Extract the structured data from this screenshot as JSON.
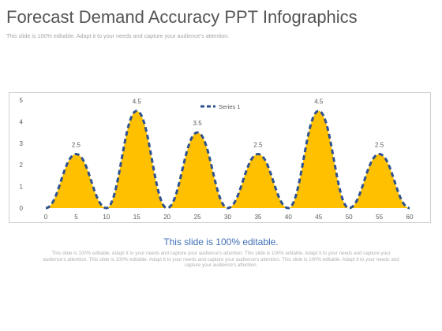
{
  "slide": {
    "title": "Forecast Demand Accuracy PPT Infographics",
    "subtitle": "This slide is 100% editable. Adapt it to your needs and capture your audience's attention.",
    "footer_heading": "This slide is 100% editable.",
    "footer_text": "This slide is 100% editable. Adapt it to your needs and capture your audience's attention. This slide is 100% editable. Adapt it to your needs and capture your audience's attention. This slide is 100% editable. Adapt it to your needs and capture your audience's attention. This slide is 100% editable. Adapt it to your needs and capture your audience's attention."
  },
  "chart_data": {
    "type": "area",
    "title": "",
    "xlabel": "",
    "ylabel": "",
    "xlim": [
      0,
      60
    ],
    "ylim": [
      0,
      5
    ],
    "x_ticks": [
      0,
      5,
      10,
      15,
      20,
      25,
      30,
      35,
      40,
      45,
      50,
      55,
      60
    ],
    "y_ticks": [
      0,
      1,
      2,
      3,
      4,
      5
    ],
    "grid": false,
    "legend": "top-center",
    "series": [
      {
        "name": "Series 1",
        "x": [
          0,
          5,
          10,
          15,
          20,
          25,
          30,
          35,
          40,
          45,
          50,
          55,
          60
        ],
        "values": [
          0,
          2.5,
          0,
          4.5,
          0,
          3.5,
          0,
          2.5,
          0,
          4.5,
          0,
          2.5,
          0
        ],
        "data_labels": [
          "",
          "2.5",
          "",
          "4.5",
          "",
          "3.5",
          "",
          "2.5",
          "",
          "4.5",
          "",
          "2.5",
          ""
        ],
        "fill_color": "#ffc000",
        "line_color": "#2f528f",
        "line_style": "dashed"
      }
    ]
  }
}
